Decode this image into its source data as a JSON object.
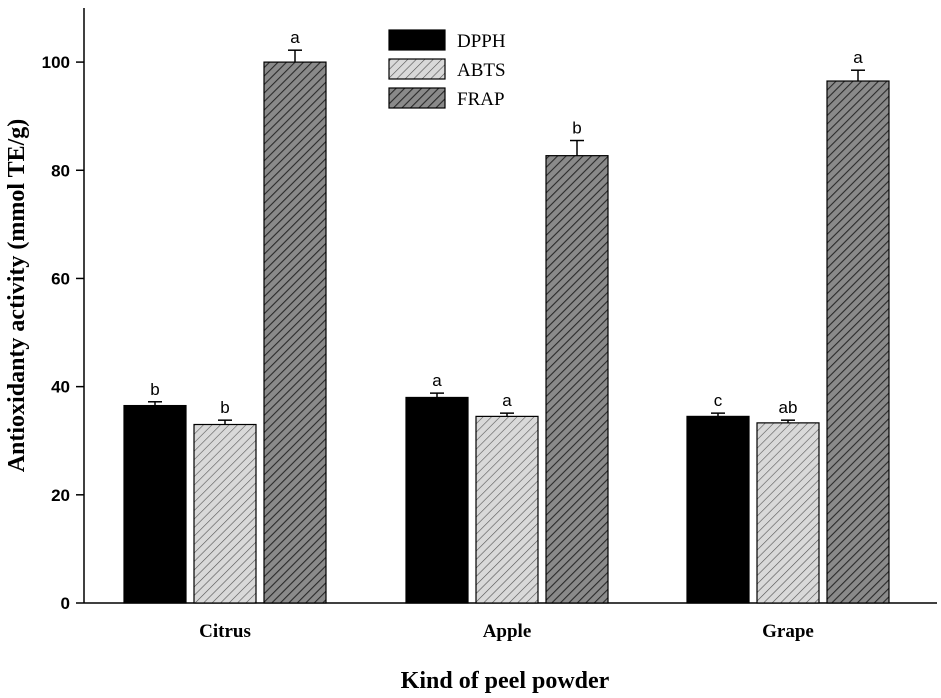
{
  "chart_data": {
    "type": "bar",
    "title": "",
    "xlabel": "Kind of peel powder",
    "ylabel": "Antioxidanty activity (mmol TE/g)",
    "categories": [
      "Citrus",
      "Apple",
      "Grape"
    ],
    "ylim": [
      0,
      110
    ],
    "yticks": [
      0,
      20,
      40,
      60,
      80,
      100
    ],
    "legend_position": "top-center",
    "series": [
      {
        "name": "DPPH",
        "pattern": "solid",
        "color": "#000000",
        "values": [
          36.5,
          38.0,
          34.5
        ],
        "errors": [
          0.7,
          0.8,
          0.6
        ],
        "labels": [
          "b",
          "a",
          "c"
        ]
      },
      {
        "name": "ABTS",
        "pattern": "light-hatch",
        "color": "#d0d0d0",
        "values": [
          33.0,
          34.5,
          33.3
        ],
        "errors": [
          0.8,
          0.6,
          0.5
        ],
        "labels": [
          "b",
          "a",
          "ab"
        ]
      },
      {
        "name": "FRAP",
        "pattern": "dark-hatch",
        "color": "#6e6e6e",
        "values": [
          100.0,
          82.7,
          96.5
        ],
        "errors": [
          2.2,
          2.8,
          2.0
        ],
        "labels": [
          "a",
          "b",
          "a"
        ]
      }
    ]
  }
}
